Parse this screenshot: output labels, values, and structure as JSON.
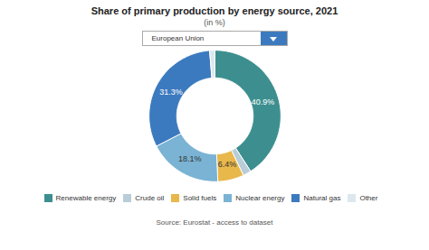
{
  "chart_data": {
    "type": "pie",
    "title": "Share of primary production by energy source, 2021",
    "subtitle": "(in %)",
    "annotations": [
      "European Union"
    ],
    "source": "Source: Eurostat - access to dataset",
    "categories": [
      "Renewable energy",
      "Crude oil",
      "Solid fuels",
      "Nuclear energy",
      "Natural gas",
      "Other"
    ],
    "values": [
      40.9,
      2.0,
      6.4,
      18.1,
      31.3,
      1.3
    ],
    "colors": [
      "#3d8f8f",
      "#b8cdd8",
      "#e8b84b",
      "#7ab3d4",
      "#3c7abf",
      "#dce8ee"
    ],
    "data_labels": true,
    "value_labels": [
      "40.9%",
      null,
      "6.4%",
      "18.1%",
      "31.3%",
      null
    ],
    "legend": "bottom"
  }
}
